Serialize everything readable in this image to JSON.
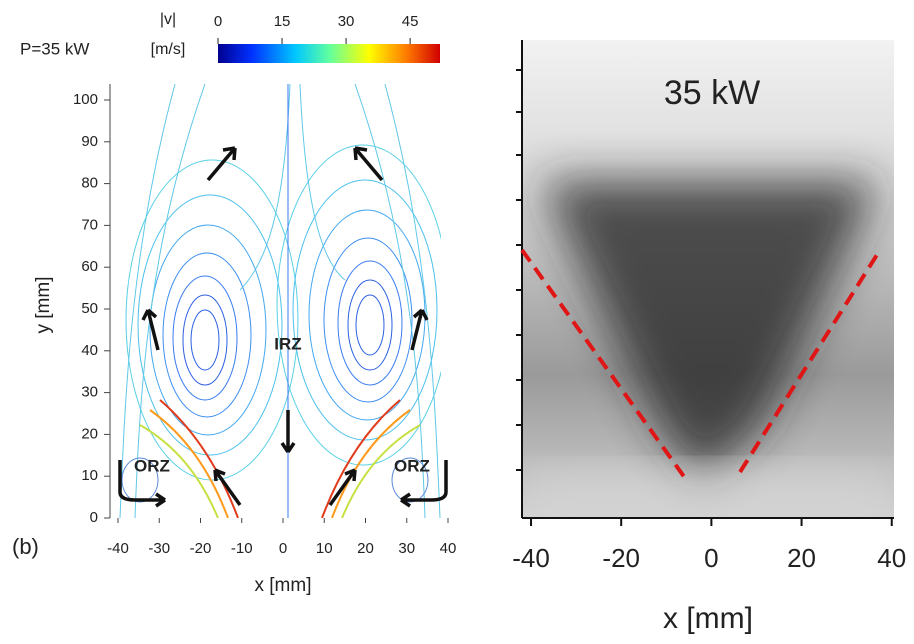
{
  "left_panel": {
    "power_label": "P=35 kW",
    "colorbar": {
      "symbol": "|v|",
      "unit": "[m/s]",
      "lim": [
        0,
        52
      ],
      "ticks": [
        0,
        15,
        30,
        45
      ]
    },
    "xlim": [
      -40,
      40
    ],
    "xticks": [
      -40,
      -30,
      -20,
      -10,
      0,
      10,
      20,
      30,
      40
    ],
    "ylim": [
      0,
      100
    ],
    "yticks": [
      0,
      10,
      20,
      30,
      40,
      50,
      60,
      70,
      80,
      90,
      100
    ],
    "xlabel": "x [mm]",
    "ylabel": "y [mm]",
    "panel_label": "(b)",
    "regions": [
      "IRZ",
      "ORZ",
      "ORZ"
    ]
  },
  "right_panel": {
    "title": "35 kW",
    "xlim": [
      -42,
      40.5
    ],
    "xticks": [
      -40,
      -20,
      0,
      20,
      40
    ],
    "xlabel": "x [mm]"
  }
}
